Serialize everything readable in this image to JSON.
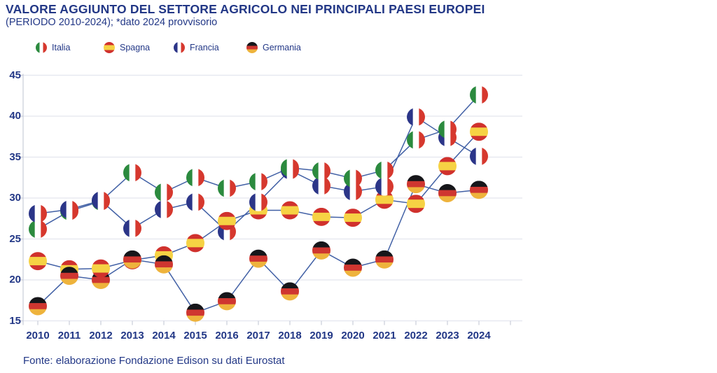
{
  "header": {
    "title": "VALORE AGGIUNTO DEL SETTORE AGRICOLO NEI PRINCIPALI PAESI EUROPEI",
    "subtitle": "(PERIODO 2010-2024); *dato 2024 provvisorio"
  },
  "legend": [
    {
      "label": "Italia",
      "flag": "italy"
    },
    {
      "label": "Spagna",
      "flag": "spain"
    },
    {
      "label": "Francia",
      "flag": "france"
    },
    {
      "label": "Germania",
      "flag": "germany"
    }
  ],
  "chart_data": {
    "type": "line",
    "x": [
      2010,
      2011,
      2012,
      2013,
      2014,
      2015,
      2016,
      2017,
      2018,
      2019,
      2020,
      2021,
      2022,
      2023,
      2024
    ],
    "series": [
      {
        "name": "Italia",
        "flag": "italy",
        "values": [
          26.2,
          28.4,
          29.6,
          33.1,
          30.7,
          32.5,
          31.2,
          32.0,
          33.7,
          33.3,
          32.4,
          33.4,
          37.1,
          38.4,
          42.6
        ]
      },
      {
        "name": "Spagna",
        "flag": "spain",
        "values": [
          22.3,
          21.3,
          21.4,
          22.4,
          23.0,
          24.5,
          27.2,
          28.5,
          28.5,
          27.7,
          27.6,
          29.8,
          29.3,
          33.9,
          38.1
        ]
      },
      {
        "name": "Francia",
        "flag": "france",
        "values": [
          28.1,
          28.6,
          29.7,
          26.3,
          28.6,
          29.5,
          25.9,
          29.5,
          33.4,
          31.5,
          30.8,
          31.4,
          39.9,
          37.4,
          35.1
        ]
      },
      {
        "name": "Germania",
        "flag": "germany",
        "values": [
          16.8,
          20.5,
          20.0,
          22.5,
          21.9,
          16.0,
          17.4,
          22.6,
          18.6,
          23.6,
          21.5,
          22.5,
          31.7,
          30.6,
          31.0
        ]
      }
    ],
    "ylim": [
      15,
      45
    ],
    "yticks": [
      45,
      40,
      35,
      30,
      25,
      20,
      15
    ],
    "grid": true,
    "legend_position": "top-left",
    "line_color": "#4160a5",
    "flags": {
      "italy": {
        "orientation": "vertical",
        "bands": [
          {
            "color": "#2b8a3e",
            "size": 0.3334
          },
          {
            "color": "#ffffff",
            "size": 0.3333
          },
          {
            "color": "#d6382e",
            "size": 0.3333
          }
        ]
      },
      "spain": {
        "orientation": "horizontal",
        "bands": [
          {
            "color": "#d0312d",
            "size": 0.27
          },
          {
            "color": "#f6d244",
            "size": 0.46
          },
          {
            "color": "#d0312d",
            "size": 0.27
          }
        ]
      },
      "france": {
        "orientation": "vertical",
        "bands": [
          {
            "color": "#2b3588",
            "size": 0.3334
          },
          {
            "color": "#ffffff",
            "size": 0.3333
          },
          {
            "color": "#d6382e",
            "size": 0.3333
          }
        ]
      },
      "germany": {
        "orientation": "horizontal",
        "bands": [
          {
            "color": "#16161a",
            "size": 0.3334
          },
          {
            "color": "#cf3630",
            "size": 0.3333
          },
          {
            "color": "#eeb33c",
            "size": 0.3333
          }
        ]
      }
    }
  },
  "footer": {
    "source": "Fonte: elaborazione Fondazione Edison su dati Eurostat"
  },
  "colors": {
    "text": "#223786",
    "line": "#4160a5",
    "grid": "#e3e5ee",
    "axis": "#c9cdd9",
    "background": "#ffffff"
  }
}
